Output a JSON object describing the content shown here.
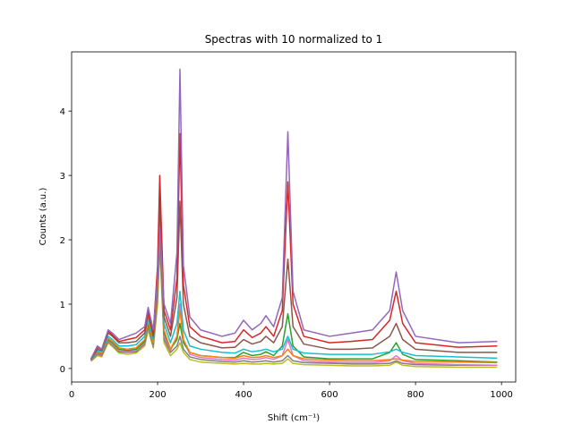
{
  "chart_data": {
    "type": "line",
    "title": "Spectras with 10 normalized to 1",
    "xlabel": "Shift (cm⁻¹)",
    "ylabel": "Counts (a.u.)",
    "x": [
      45,
      60,
      70,
      85,
      95,
      110,
      130,
      150,
      170,
      178,
      190,
      200,
      205,
      215,
      230,
      245,
      252,
      260,
      275,
      300,
      350,
      380,
      400,
      420,
      440,
      452,
      470,
      490,
      503,
      515,
      540,
      600,
      650,
      700,
      740,
      755,
      770,
      800,
      900,
      990
    ],
    "series": [
      {
        "color": "#bcbd22",
        "values": [
          0.11,
          0.2,
          0.18,
          0.4,
          0.34,
          0.24,
          0.22,
          0.24,
          0.35,
          0.6,
          0.32,
          1.0,
          1.9,
          0.4,
          0.2,
          0.3,
          0.4,
          0.25,
          0.14,
          0.1,
          0.08,
          0.07,
          0.08,
          0.07,
          0.07,
          0.08,
          0.07,
          0.08,
          0.15,
          0.08,
          0.06,
          0.05,
          0.04,
          0.04,
          0.05,
          0.1,
          0.05,
          0.03,
          0.02,
          0.02
        ]
      },
      {
        "color": "#7f7f7f",
        "values": [
          0.12,
          0.22,
          0.2,
          0.42,
          0.36,
          0.26,
          0.25,
          0.26,
          0.38,
          0.65,
          0.34,
          1.1,
          2.0,
          0.45,
          0.25,
          0.35,
          0.5,
          0.3,
          0.18,
          0.14,
          0.11,
          0.1,
          0.12,
          0.1,
          0.11,
          0.12,
          0.1,
          0.12,
          0.2,
          0.12,
          0.09,
          0.08,
          0.07,
          0.07,
          0.08,
          0.12,
          0.08,
          0.06,
          0.05,
          0.05
        ]
      },
      {
        "color": "#e377c2",
        "values": [
          0.12,
          0.24,
          0.22,
          0.44,
          0.38,
          0.28,
          0.27,
          0.28,
          0.4,
          0.68,
          0.36,
          1.15,
          2.2,
          0.5,
          0.28,
          0.5,
          1.0,
          0.45,
          0.22,
          0.17,
          0.14,
          0.13,
          0.16,
          0.14,
          0.15,
          0.17,
          0.14,
          0.2,
          0.45,
          0.2,
          0.12,
          0.1,
          0.09,
          0.09,
          0.12,
          0.2,
          0.12,
          0.08,
          0.06,
          0.05
        ]
      },
      {
        "color": "#2ca02c",
        "values": [
          0.13,
          0.25,
          0.23,
          0.45,
          0.4,
          0.3,
          0.28,
          0.3,
          0.42,
          0.7,
          0.38,
          1.2,
          2.3,
          0.55,
          0.3,
          0.45,
          0.7,
          0.4,
          0.25,
          0.2,
          0.17,
          0.17,
          0.25,
          0.2,
          0.22,
          0.26,
          0.2,
          0.35,
          0.85,
          0.35,
          0.18,
          0.15,
          0.15,
          0.15,
          0.25,
          0.4,
          0.22,
          0.14,
          0.12,
          0.1
        ]
      },
      {
        "color": "#ff7f0e",
        "values": [
          0.13,
          0.26,
          0.24,
          0.47,
          0.42,
          0.32,
          0.3,
          0.32,
          0.45,
          0.75,
          0.4,
          1.3,
          2.5,
          0.6,
          0.3,
          0.5,
          0.9,
          0.45,
          0.25,
          0.2,
          0.17,
          0.16,
          0.2,
          0.17,
          0.18,
          0.2,
          0.17,
          0.2,
          0.3,
          0.2,
          0.15,
          0.13,
          0.12,
          0.12,
          0.14,
          0.15,
          0.13,
          0.11,
          0.1,
          0.09
        ]
      },
      {
        "color": "#17becf",
        "values": [
          0.13,
          0.28,
          0.26,
          0.5,
          0.45,
          0.35,
          0.35,
          0.37,
          0.5,
          0.8,
          0.45,
          1.5,
          2.8,
          0.7,
          0.4,
          0.7,
          1.2,
          0.6,
          0.35,
          0.3,
          0.25,
          0.24,
          0.3,
          0.26,
          0.28,
          0.3,
          0.26,
          0.3,
          0.5,
          0.3,
          0.24,
          0.22,
          0.22,
          0.22,
          0.26,
          0.3,
          0.25,
          0.2,
          0.18,
          0.16
        ]
      },
      {
        "color": "#8c564b",
        "values": [
          0.14,
          0.3,
          0.28,
          0.55,
          0.5,
          0.4,
          0.4,
          0.42,
          0.55,
          0.85,
          0.5,
          1.4,
          2.6,
          0.8,
          0.5,
          1.1,
          2.6,
          1.0,
          0.5,
          0.4,
          0.32,
          0.33,
          0.45,
          0.38,
          0.42,
          0.5,
          0.4,
          0.65,
          1.7,
          0.65,
          0.38,
          0.3,
          0.3,
          0.32,
          0.5,
          0.7,
          0.45,
          0.3,
          0.25,
          0.25
        ]
      },
      {
        "color": "#d62728",
        "values": [
          0.15,
          0.33,
          0.3,
          0.58,
          0.52,
          0.42,
          0.45,
          0.48,
          0.6,
          0.9,
          0.55,
          1.6,
          3.0,
          0.9,
          0.6,
          1.4,
          3.65,
          1.3,
          0.65,
          0.5,
          0.4,
          0.42,
          0.6,
          0.48,
          0.55,
          0.65,
          0.5,
          0.9,
          2.9,
          1.0,
          0.5,
          0.4,
          0.42,
          0.45,
          0.75,
          1.2,
          0.7,
          0.4,
          0.33,
          0.35
        ]
      },
      {
        "color": "#9467bd",
        "values": [
          0.15,
          0.35,
          0.3,
          0.6,
          0.55,
          0.45,
          0.5,
          0.55,
          0.65,
          0.95,
          0.6,
          1.4,
          2.2,
          1.0,
          0.7,
          1.8,
          4.65,
          1.6,
          0.8,
          0.6,
          0.5,
          0.55,
          0.75,
          0.6,
          0.7,
          0.82,
          0.65,
          1.1,
          3.68,
          1.2,
          0.6,
          0.5,
          0.55,
          0.6,
          0.9,
          1.5,
          0.9,
          0.5,
          0.4,
          0.42
        ]
      }
    ],
    "xlim": [
      0,
      1033
    ],
    "ylim": [
      -0.21,
      4.92
    ],
    "xticks": [
      0,
      200,
      400,
      600,
      800,
      1000
    ],
    "yticks": [
      0,
      1,
      2,
      3,
      4
    ]
  }
}
